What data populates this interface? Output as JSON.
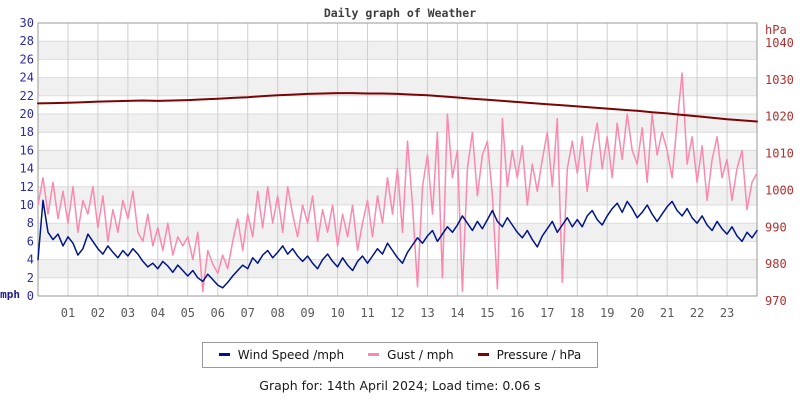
{
  "title": "Daily graph of Weather",
  "footer": {
    "text": "Graph for: 14th April 2024; Load time: 0.06 s"
  },
  "legend": [
    {
      "label": "Wind Speed /mph",
      "color": "#001489"
    },
    {
      "label": "Gust / mph",
      "color": "#fa89ad"
    },
    {
      "label": "Pressure / hPa",
      "color": "#7d0404"
    }
  ],
  "chart_data": {
    "type": "line",
    "title": "Daily graph of Weather",
    "x_unit": "hour of day",
    "x_range_hours": [
      0,
      24
    ],
    "x_ticks": [
      "01",
      "02",
      "03",
      "04",
      "05",
      "06",
      "07",
      "08",
      "09",
      "10",
      "11",
      "12",
      "13",
      "14",
      "15",
      "16",
      "17",
      "18",
      "19",
      "20",
      "21",
      "22",
      "23"
    ],
    "grid": true,
    "legend_position": "bottom",
    "left_axis": {
      "unit": "mph",
      "min": 0,
      "max": 30,
      "ticks": [
        30,
        28,
        26,
        24,
        22,
        20,
        18,
        16,
        14,
        12,
        10,
        8,
        6,
        4,
        2,
        0
      ],
      "color": "#2a2aa8"
    },
    "right_axis": {
      "unit": "hPa",
      "ticks": [
        1040,
        1030,
        1020,
        1010,
        1000,
        990,
        980,
        970
      ],
      "color": "#b03030"
    },
    "series": [
      {
        "name": "Wind Speed /mph",
        "axis": "left",
        "color": "#001489",
        "interval_minutes": 10,
        "values": [
          4.0,
          10.5,
          7.0,
          6.2,
          6.8,
          5.5,
          6.5,
          5.8,
          4.5,
          5.2,
          6.8,
          6.0,
          5.2,
          4.6,
          5.5,
          4.8,
          4.2,
          5.0,
          4.4,
          5.2,
          4.6,
          3.8,
          3.2,
          3.6,
          3.0,
          3.8,
          3.3,
          2.6,
          3.4,
          2.8,
          2.2,
          2.8,
          2.0,
          1.6,
          2.4,
          1.8,
          1.2,
          0.9,
          1.5,
          2.2,
          2.8,
          3.4,
          3.0,
          4.2,
          3.6,
          4.5,
          5.0,
          4.2,
          4.8,
          5.5,
          4.6,
          5.2,
          4.4,
          3.8,
          4.4,
          3.6,
          3.0,
          4.0,
          4.6,
          3.8,
          3.2,
          4.2,
          3.4,
          2.8,
          3.8,
          4.4,
          3.6,
          4.4,
          5.2,
          4.6,
          5.8,
          5.0,
          4.2,
          3.6,
          4.8,
          5.6,
          6.4,
          5.8,
          6.6,
          7.2,
          6.0,
          6.8,
          7.6,
          7.0,
          7.8,
          8.8,
          8.0,
          7.2,
          8.2,
          7.4,
          8.4,
          9.4,
          8.2,
          7.6,
          8.6,
          7.8,
          7.0,
          6.4,
          7.2,
          6.2,
          5.4,
          6.6,
          7.4,
          8.2,
          7.0,
          7.8,
          8.6,
          7.6,
          8.4,
          7.6,
          8.8,
          9.4,
          8.4,
          7.8,
          8.8,
          9.6,
          10.2,
          9.2,
          10.4,
          9.6,
          8.6,
          9.2,
          10.0,
          9.0,
          8.2,
          9.0,
          9.8,
          10.4,
          9.4,
          8.8,
          9.6,
          8.6,
          8.0,
          8.8,
          7.8,
          7.2,
          8.2,
          7.4,
          6.8,
          7.6,
          6.6,
          6.0,
          7.0,
          6.4,
          7.2
        ]
      },
      {
        "name": "Gust / mph",
        "axis": "left",
        "color": "#fa89ad",
        "interval_minutes": 10,
        "values": [
          10.0,
          13.0,
          9.0,
          12.5,
          8.5,
          11.5,
          8.0,
          12.0,
          7.0,
          10.5,
          9.0,
          12.0,
          7.5,
          11.0,
          6.0,
          9.5,
          7.0,
          10.5,
          8.5,
          11.5,
          7.0,
          6.0,
          9.0,
          5.5,
          7.5,
          5.0,
          8.0,
          4.5,
          6.5,
          5.5,
          6.5,
          4.0,
          7.0,
          0.5,
          5.0,
          3.5,
          2.5,
          4.5,
          3.0,
          6.0,
          8.5,
          5.0,
          9.0,
          6.5,
          11.5,
          7.5,
          12.0,
          8.0,
          11.0,
          7.0,
          12.0,
          9.0,
          6.5,
          10.0,
          8.0,
          11.0,
          6.0,
          9.5,
          7.0,
          10.0,
          5.5,
          9.0,
          6.5,
          10.0,
          5.0,
          8.0,
          10.5,
          6.5,
          11.0,
          8.0,
          13.0,
          9.0,
          14.0,
          7.0,
          17.0,
          10.0,
          1.0,
          12.0,
          15.5,
          9.0,
          18.0,
          2.0,
          20.0,
          13.0,
          16.0,
          0.5,
          14.0,
          18.0,
          11.0,
          15.5,
          17.0,
          11.0,
          0.8,
          19.5,
          12.0,
          16.0,
          13.0,
          16.5,
          10.0,
          14.5,
          11.5,
          15.0,
          18.0,
          12.0,
          19.5,
          1.5,
          14.0,
          17.0,
          13.5,
          17.5,
          11.5,
          16.0,
          19.0,
          14.0,
          17.5,
          13.0,
          19.0,
          15.0,
          20.0,
          16.0,
          14.5,
          18.5,
          12.5,
          20.0,
          15.5,
          18.0,
          16.0,
          13.0,
          19.0,
          24.5,
          14.5,
          17.5,
          12.5,
          16.5,
          10.5,
          15.0,
          17.5,
          13.0,
          15.0,
          10.5,
          14.0,
          16.0,
          9.5,
          12.5,
          13.5
        ]
      },
      {
        "name": "Pressure / hPa",
        "axis": "right",
        "color": "#7d0404",
        "interval_minutes": 30,
        "values": [
          1023.6,
          1023.7,
          1023.8,
          1023.9,
          1024.1,
          1024.2,
          1024.3,
          1024.4,
          1024.3,
          1024.4,
          1024.5,
          1024.7,
          1024.9,
          1025.1,
          1025.3,
          1025.6,
          1025.8,
          1026.0,
          1026.2,
          1026.3,
          1026.4,
          1026.4,
          1026.3,
          1026.3,
          1026.2,
          1026.0,
          1025.8,
          1025.5,
          1025.2,
          1024.9,
          1024.6,
          1024.3,
          1024.0,
          1023.7,
          1023.4,
          1023.1,
          1022.8,
          1022.5,
          1022.2,
          1021.9,
          1021.6,
          1021.2,
          1020.9,
          1020.5,
          1020.1,
          1019.7,
          1019.3,
          1019.0,
          1018.7
        ]
      }
    ]
  }
}
